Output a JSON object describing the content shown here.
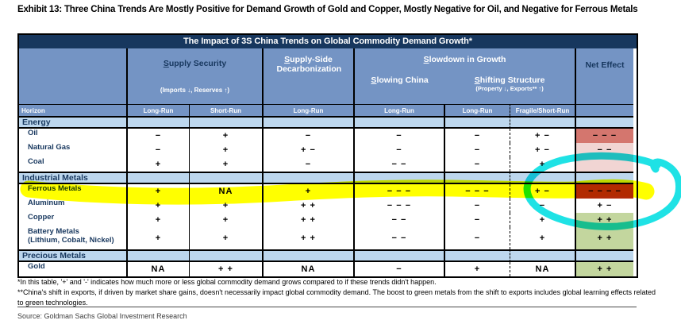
{
  "page": {
    "exhibit_title": "Exhibit 13: Three China Trends Are Mostly Positive for Demand Growth of Gold and Copper, Mostly Negative for Oil, and Negative for Ferrous Metals"
  },
  "table": {
    "title": "The Impact of 3S China Trends on Global Commodity Demand Growth*",
    "header": {
      "horizon": "Horizon",
      "supply_security": {
        "label": "Supply Security",
        "sub": "(Imports ↓, Reserves ↑)"
      },
      "decarbonization": {
        "label": "Supply-Side Decarbonization"
      },
      "slowdown": {
        "label": "Slowdown in Growth",
        "slowing_china": {
          "label": "Slowing China"
        },
        "shifting_structure": {
          "label": "Shifting Structure",
          "sub": "(Property ↓, Exports** ↑)"
        }
      },
      "net_effect": {
        "label": "Net Effect"
      },
      "subcolumns": [
        "Long-Run",
        "Short-Run",
        "Long-Run",
        "Long-Run",
        "Long-Run",
        "Fragile/Short-Run"
      ]
    },
    "sections": [
      {
        "name": "Energy",
        "rows": [
          {
            "label": "Oil",
            "values": [
              "−",
              "+",
              "−",
              "−",
              "−",
              "+ −"
            ],
            "net": {
              "text": "− − −",
              "bg": "#D4766E"
            }
          },
          {
            "label": "Natural Gas",
            "values": [
              "−",
              "+",
              "+ −",
              "−",
              "−",
              "+ −"
            ],
            "net": {
              "text": "− −",
              "bg": "#F1D5D3"
            }
          },
          {
            "label": "Coal",
            "values": [
              "+",
              "+",
              "−",
              "− −",
              "−",
              "+"
            ],
            "net": {
              "text": "",
              "bg": "#F1D5D3",
              "obscured_by_marker": true
            }
          }
        ]
      },
      {
        "name": "Industrial Metals",
        "rows": [
          {
            "label": "Ferrous Metals",
            "highlighted": true,
            "values": [
              "+",
              "NA",
              "+",
              "− − −",
              "− − −",
              "+ −"
            ],
            "net": {
              "text": "− − − −",
              "bg": "#B22A08"
            }
          },
          {
            "label": "Aluminum",
            "values": [
              "+",
              "+",
              "+ +",
              "− − −",
              "−",
              "−"
            ],
            "net": {
              "text": "+ −",
              "bg": "#FFFFFF"
            }
          },
          {
            "label": "Copper",
            "values": [
              "+",
              "+",
              "+ +",
              "− −",
              "−",
              "+"
            ],
            "net": {
              "text": "+ +",
              "bg": "#C3D69E"
            }
          },
          {
            "label": "Battery Metals",
            "sublabel": "(Lithium, Cobalt, Nickel)",
            "values": [
              "+",
              "+",
              "+ +",
              "− −",
              "−",
              "+"
            ],
            "net": {
              "text": "+ +",
              "bg": "#C3D69E"
            }
          }
        ]
      },
      {
        "name": "Precious Metals",
        "rows": [
          {
            "label": "Gold",
            "values": [
              "NA",
              "+ +",
              "NA",
              "−",
              "+",
              "NA"
            ],
            "net": {
              "text": "+ +",
              "bg": "#C3D69E"
            }
          }
        ]
      }
    ]
  },
  "footnotes": [
    "*In this table, '+' and '-' indicates how much more or less global commodity demand grows compared to if these trends didn't happen.",
    "**China's shift in exports, if driven by market share gains, doesn't necessarily impact global commodity demand. The boost to green metals from the shift to exports includes global learning effects related to green technologies."
  ],
  "source": "Source: Goldman Sachs Global Investment Research",
  "annotations": {
    "row_highlighter": {
      "color": "#FFFF00",
      "target": "Ferrous Metals row"
    },
    "hand_circle": {
      "color": "#1FE2E5",
      "target": "Ferrous Metals Net Effect"
    }
  },
  "colors": {
    "navy": "#17375E",
    "header_blue": "#7494C4",
    "section_blue": "#BDD7EE",
    "net_strong_negative": "#B22A08",
    "net_negative": "#D4766E",
    "net_mild_negative": "#F1D5D3",
    "net_positive": "#C3D69E"
  }
}
